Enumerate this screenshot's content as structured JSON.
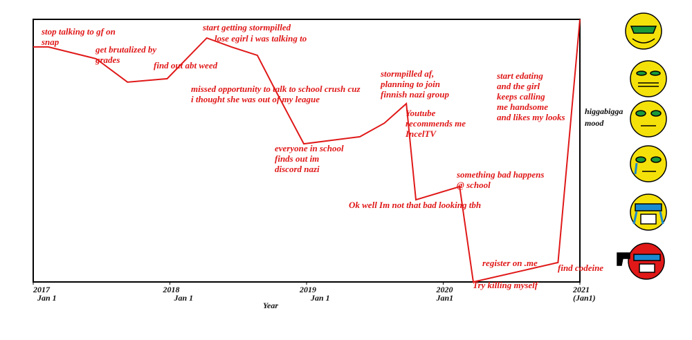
{
  "chart_data": {
    "type": "line",
    "x_label": "Year",
    "y_label": [
      "higgabigga",
      "mood"
    ],
    "xlim": [
      2017,
      2021
    ],
    "ylim": [
      0,
      100
    ],
    "xticks": [
      {
        "value": 2017,
        "label": "2017"
      },
      {
        "value": 2018,
        "label": "2018"
      },
      {
        "value": 2019,
        "label": "2019"
      },
      {
        "value": 2020,
        "label": "2020"
      },
      {
        "value": 2021,
        "label": "2021"
      }
    ],
    "xtick_notes": [
      "Jan 1",
      "Jan 1",
      "Jan 1",
      "Jan1",
      "(Jan1)"
    ],
    "series": [
      {
        "name": "mood",
        "color": "#e01818",
        "x": [
          2017.0,
          2017.11,
          2017.46,
          2017.69,
          2017.98,
          2018.27,
          2018.45,
          2018.64,
          2018.77,
          2018.98,
          2019.39,
          2019.57,
          2019.73,
          2019.8,
          2020.12,
          2020.22,
          2020.84,
          2021.0
        ],
        "values": [
          89.5,
          89.5,
          85.0,
          76.1,
          77.4,
          92.9,
          89.5,
          86.3,
          73.2,
          52.6,
          55.3,
          60.5,
          67.9,
          31.3,
          36.3,
          0,
          7.4,
          100
        ]
      }
    ],
    "annotations": [
      [
        "stop talking to gf on",
        "snap"
      ],
      [
        "get brutalized by",
        "grades"
      ],
      [
        "find out abt weed"
      ],
      [
        "start getting stormpilled"
      ],
      [
        "lose egirl i was talking to"
      ],
      [
        "missed opportunity to talk to school crush cuz",
        "i thought she was out of my league"
      ],
      [
        "everyone in school",
        "finds out im",
        "discord nazi"
      ],
      [
        "stormpilled af,",
        "planning to join",
        "finnish nazi group"
      ],
      [
        "Youtube",
        "recommends me",
        "IncelTV"
      ],
      [
        "Ok well Im not that bad looking tbh"
      ],
      [
        "something bad happens",
        "@ school"
      ],
      [
        "Try killing myself"
      ],
      [
        "register on .me"
      ],
      [
        "find codeine"
      ],
      [
        "start edating",
        "and the girl",
        "keeps calling",
        "me handsome",
        "and likes my looks"
      ]
    ]
  }
}
